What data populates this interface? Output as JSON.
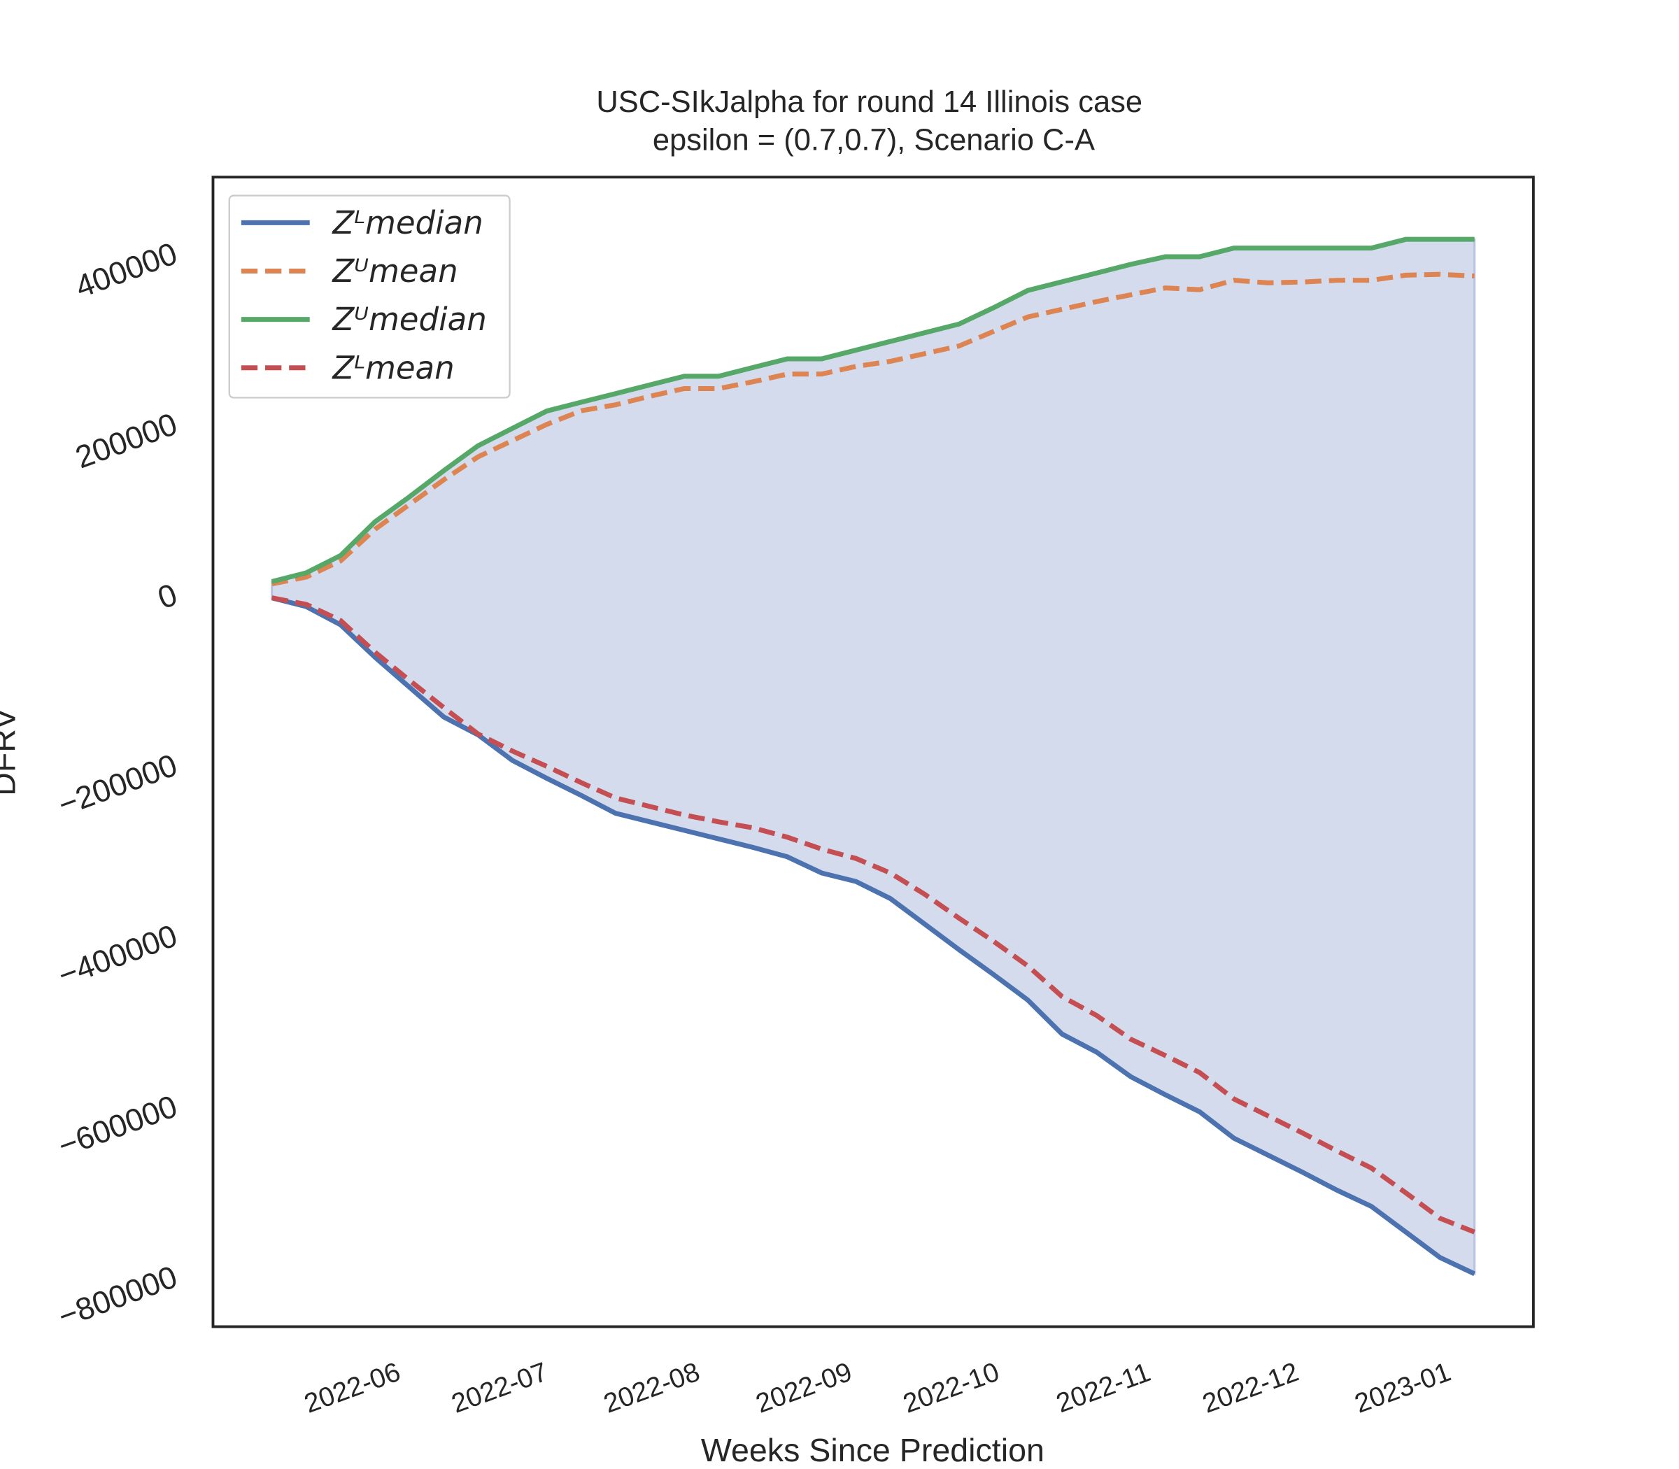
{
  "chart_data": {
    "type": "line",
    "title": "USC-SIkJalpha for round 14 Illinois  case",
    "subtitle": "epsilon = (0.7,0.7), Scenario C-A",
    "x_label": "Weeks Since Prediction",
    "y_label": "DFRV",
    "fill_color": "#d3dbec",
    "x": [
      "2022-05-15",
      "2022-05-22",
      "2022-05-29",
      "2022-06-05",
      "2022-06-12",
      "2022-06-19",
      "2022-06-26",
      "2022-07-03",
      "2022-07-10",
      "2022-07-17",
      "2022-07-24",
      "2022-07-31",
      "2022-08-07",
      "2022-08-14",
      "2022-08-21",
      "2022-08-28",
      "2022-09-04",
      "2022-09-11",
      "2022-09-18",
      "2022-09-25",
      "2022-10-02",
      "2022-10-09",
      "2022-10-16",
      "2022-10-23",
      "2022-10-30",
      "2022-11-06",
      "2022-11-13",
      "2022-11-20",
      "2022-11-27",
      "2022-12-04",
      "2022-12-11",
      "2022-12-18",
      "2022-12-25",
      "2023-01-01",
      "2023-01-08",
      "2023-01-15"
    ],
    "series": [
      {
        "name": "Zᴸmedian",
        "color": "#4c72b0",
        "dash": false,
        "values": [
          -6400,
          -16600,
          -38000,
          -76000,
          -111000,
          -146000,
          -167000,
          -197000,
          -218000,
          -238000,
          -259000,
          -269000,
          -279000,
          -289000,
          -299000,
          -310000,
          -329000,
          -339000,
          -359000,
          -389000,
          -419000,
          -448000,
          -478000,
          -518000,
          -539000,
          -568000,
          -589000,
          -609000,
          -640000,
          -660000,
          -680000,
          -701000,
          -720000,
          -750000,
          -780000,
          -799000
        ]
      },
      {
        "name": "Zᵁmean",
        "color": "#dd8452",
        "dash": true,
        "values": [
          10000,
          18000,
          37000,
          74000,
          103000,
          132000,
          159000,
          178000,
          197000,
          213000,
          220000,
          230000,
          239000,
          239000,
          247000,
          256000,
          256000,
          265000,
          271000,
          280000,
          289000,
          306000,
          323000,
          332000,
          341000,
          349000,
          357000,
          355000,
          366000,
          363000,
          364000,
          366000,
          366000,
          372000,
          373000,
          371000
        ]
      },
      {
        "name": "Zᵁmedian",
        "color": "#55a868",
        "dash": false,
        "values": [
          12700,
          23000,
          43300,
          82800,
          112000,
          142700,
          172000,
          192400,
          212700,
          223000,
          233100,
          243300,
          253500,
          253500,
          263700,
          273900,
          273900,
          284100,
          294300,
          304500,
          314700,
          333800,
          354100,
          364300,
          374500,
          384700,
          393600,
          393600,
          403800,
          403800,
          403800,
          403800,
          403800,
          414000,
          414000,
          414000
        ]
      },
      {
        "name": "Zᴸmean",
        "color": "#c44e52",
        "dash": true,
        "values": [
          -6400,
          -14000,
          -33000,
          -70000,
          -103000,
          -135000,
          -166000,
          -186000,
          -204000,
          -223000,
          -241000,
          -251000,
          -261000,
          -269000,
          -276000,
          -287000,
          -301000,
          -312000,
          -329000,
          -354000,
          -382000,
          -409000,
          -438000,
          -474000,
          -496000,
          -524000,
          -543000,
          -563000,
          -594000,
          -614000,
          -634000,
          -655000,
          -675000,
          -704000,
          -734000,
          -750000
        ]
      }
    ],
    "xlim": [
      "2022-05-03",
      "2023-01-27"
    ],
    "xticks": [
      {
        "value": "2022-06-01",
        "label": "2022-06"
      },
      {
        "value": "2022-07-01",
        "label": "2022-07"
      },
      {
        "value": "2022-08-01",
        "label": "2022-08"
      },
      {
        "value": "2022-09-01",
        "label": "2022-09"
      },
      {
        "value": "2022-10-01",
        "label": "2022-10"
      },
      {
        "value": "2022-11-01",
        "label": "2022-11"
      },
      {
        "value": "2022-12-01",
        "label": "2022-12"
      },
      {
        "value": "2023-01-01",
        "label": "2023-01"
      }
    ],
    "ylim": [
      -861000,
      487000
    ],
    "yticks": [
      {
        "value": -800000,
        "label": "−800000"
      },
      {
        "value": -600000,
        "label": "−600000"
      },
      {
        "value": -400000,
        "label": "−400000"
      },
      {
        "value": -200000,
        "label": "−200000"
      },
      0,
      200000,
      400000
    ],
    "grid": false,
    "legend": "upper left"
  }
}
